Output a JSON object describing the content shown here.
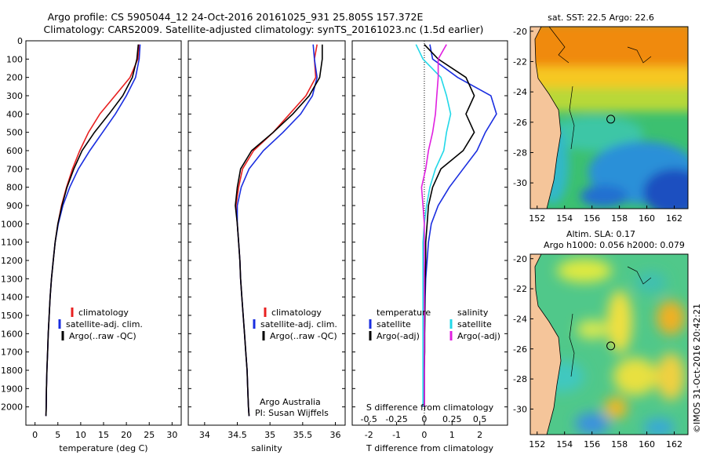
{
  "title_line1": "Argo profile: CS 5905044_12 24-Oct-2016 20161025_931 25.805S 157.372E",
  "title_line2": "Climatology: CARS2009. Satellite-adjusted climatology: synTS_20161023.nc (1.5d earlier)",
  "copyright": "©IMOS 31-Oct-2016 20:42:21",
  "colors": {
    "climatology": "#e82020",
    "satellite": "#1a2ee0",
    "argo": "#000000",
    "sat_salinity": "#22d8e8",
    "argo_salinity": "#e020e0"
  },
  "temp_panel": {
    "xlabel": "temperature (deg C)",
    "legend": [
      "climatology",
      "satellite-adj. clim.",
      "Argo(..raw -QC)"
    ]
  },
  "sal_panel": {
    "xlabel": "salinity",
    "legend": [
      "climatology",
      "satellite-adj. clim.",
      "Argo(..raw -QC)"
    ],
    "note1": "Argo Australia",
    "note2": "PI: Susan Wijffels"
  },
  "diff_panel": {
    "xlabel": "T difference from climatology",
    "top_label": "S difference from climatology",
    "legend_temp_title": "temperature",
    "legend_sal_title": "salinity",
    "legend_temp": [
      "satellite",
      "Argo(-adj)"
    ],
    "legend_sal": [
      "satellite",
      "Argo(-adj)"
    ]
  },
  "sst_map": {
    "title": "sat. SST: 22.5  Argo: 22.6"
  },
  "sla_map": {
    "title1": "Altim. SLA: 0.17",
    "title2": "Argo h1000: 0.056  h2000: 0.079"
  },
  "chart_data": [
    {
      "type": "line",
      "name": "temperature profile",
      "xlabel": "temperature (deg C)",
      "ylabel": "",
      "xlim": [
        -2,
        32
      ],
      "ylim": [
        2100,
        0
      ],
      "xticks": [
        0,
        5,
        10,
        15,
        20,
        25,
        30
      ],
      "yticks": [
        0,
        100,
        200,
        300,
        400,
        500,
        600,
        700,
        800,
        900,
        1000,
        1100,
        1200,
        1300,
        1400,
        1500,
        1600,
        1700,
        1800,
        1900,
        2000
      ],
      "series": [
        {
          "name": "climatology",
          "color": "#e82020",
          "x": [
            22.8,
            22.5,
            20.8,
            17.5,
            14.2,
            11.7,
            9.8,
            8.2,
            6.9,
            5.8,
            5.0,
            4.4,
            4.0,
            3.6,
            3.3,
            3.1,
            2.9,
            2.75,
            2.6,
            2.5,
            2.45,
            2.4
          ],
          "y": [
            20,
            100,
            200,
            300,
            400,
            500,
            600,
            700,
            800,
            900,
            1000,
            1100,
            1200,
            1300,
            1400,
            1500,
            1600,
            1700,
            1800,
            1900,
            2000,
            2050
          ]
        },
        {
          "name": "satellite-adj. clim.",
          "color": "#1a2ee0",
          "x": [
            23.0,
            22.8,
            22.0,
            20.0,
            17.6,
            14.8,
            12.0,
            9.5,
            7.6,
            6.1,
            5.1,
            4.4,
            4.0,
            3.6,
            3.3,
            3.1,
            2.9,
            2.75,
            2.6,
            2.5,
            2.45,
            2.4
          ],
          "y": [
            20,
            100,
            200,
            300,
            400,
            500,
            600,
            700,
            800,
            900,
            1000,
            1100,
            1200,
            1300,
            1400,
            1500,
            1600,
            1700,
            1800,
            1900,
            2000,
            2050
          ]
        },
        {
          "name": "Argo(..raw -QC)",
          "color": "#000000",
          "x": [
            22.6,
            22.3,
            21.3,
            19.2,
            16.2,
            13.0,
            10.3,
            8.5,
            7.0,
            5.9,
            5.0,
            4.4,
            4.0,
            3.6,
            3.3,
            3.1,
            2.9,
            2.75,
            2.6,
            2.5,
            2.45,
            2.4
          ],
          "y": [
            20,
            100,
            200,
            300,
            400,
            500,
            600,
            700,
            800,
            900,
            1000,
            1100,
            1200,
            1300,
            1400,
            1500,
            1600,
            1700,
            1800,
            1900,
            2000,
            2050
          ]
        }
      ]
    },
    {
      "type": "line",
      "name": "salinity profile",
      "xlabel": "salinity",
      "xlim": [
        33.75,
        36.15
      ],
      "ylim": [
        2100,
        0
      ],
      "xticks": [
        34,
        34.5,
        35,
        35.5,
        36
      ],
      "series": [
        {
          "name": "climatology",
          "color": "#e82020",
          "x": [
            35.72,
            35.68,
            35.7,
            35.55,
            35.3,
            35.05,
            34.75,
            34.58,
            34.52,
            34.48,
            34.5,
            34.52,
            34.54,
            34.55,
            34.57,
            34.59,
            34.61,
            34.63,
            34.65,
            34.66,
            34.67,
            34.68
          ],
          "y": [
            20,
            100,
            200,
            300,
            400,
            500,
            600,
            700,
            800,
            900,
            1000,
            1100,
            1200,
            1300,
            1400,
            1500,
            1600,
            1700,
            1800,
            1900,
            2000,
            2050
          ]
        },
        {
          "name": "satellite-adj. clim.",
          "color": "#1a2ee0",
          "x": [
            35.66,
            35.68,
            35.72,
            35.65,
            35.47,
            35.2,
            34.9,
            34.68,
            34.56,
            34.5,
            34.5,
            34.52,
            34.54,
            34.55,
            34.57,
            34.59,
            34.61,
            34.63,
            34.65,
            34.66,
            34.67,
            34.68
          ],
          "y": [
            20,
            100,
            200,
            300,
            400,
            500,
            600,
            700,
            800,
            900,
            1000,
            1100,
            1200,
            1300,
            1400,
            1500,
            1600,
            1700,
            1800,
            1900,
            2000,
            2050
          ]
        },
        {
          "name": "Argo(..raw -QC)",
          "color": "#000000",
          "x": [
            35.8,
            35.8,
            35.76,
            35.6,
            35.35,
            35.05,
            34.72,
            34.55,
            34.5,
            34.47,
            34.5,
            34.52,
            34.54,
            34.55,
            34.57,
            34.59,
            34.61,
            34.63,
            34.65,
            34.66,
            34.67,
            34.68
          ],
          "y": [
            20,
            100,
            200,
            300,
            400,
            500,
            600,
            700,
            800,
            900,
            1000,
            1100,
            1200,
            1300,
            1400,
            1500,
            1600,
            1700,
            1800,
            1900,
            2000,
            2050
          ]
        }
      ]
    },
    {
      "type": "line",
      "name": "difference from climatology",
      "xlabel": "T difference from climatology",
      "top_xlabel": "S difference from climatology",
      "xlim": [
        -2.6,
        3.0
      ],
      "ylim": [
        2100,
        0
      ],
      "xticks": [
        -2,
        -1,
        0,
        1,
        2
      ],
      "top_xticks": [
        {
          "pos": -2,
          "label": "-0.5"
        },
        {
          "pos": -1,
          "label": "-0.25"
        },
        {
          "pos": 0,
          "label": "0"
        },
        {
          "pos": 1,
          "label": "0.25"
        },
        {
          "pos": 2,
          "label": "0.5"
        }
      ],
      "series": [
        {
          "name": "temperature satellite",
          "color": "#1a2ee0",
          "x": [
            0.2,
            0.3,
            1.2,
            2.4,
            2.6,
            2.2,
            1.9,
            1.4,
            0.9,
            0.5,
            0.25,
            0.15,
            0.1,
            0.05,
            0.03,
            0.02,
            0.01,
            0.01,
            0.0,
            0.0,
            0.0
          ],
          "y": [
            20,
            100,
            200,
            300,
            400,
            500,
            600,
            700,
            800,
            900,
            1000,
            1100,
            1200,
            1300,
            1400,
            1500,
            1600,
            1700,
            1800,
            1900,
            2000
          ]
        },
        {
          "name": "temperature Argo(-adj)",
          "color": "#000000",
          "x": [
            0.0,
            0.5,
            1.5,
            1.8,
            1.5,
            1.8,
            1.4,
            0.6,
            0.3,
            0.15,
            0.1,
            0.05,
            0.05,
            0.03,
            0.02,
            0.02,
            0.01,
            0.01,
            0.0,
            0.0,
            0.0
          ],
          "y": [
            20,
            100,
            200,
            300,
            400,
            500,
            600,
            700,
            800,
            900,
            1000,
            1100,
            1200,
            1300,
            1400,
            1500,
            1600,
            1700,
            1800,
            1900,
            2000
          ]
        },
        {
          "name": "salinity satellite",
          "color": "#22d8e8",
          "x": [
            -0.3,
            -0.05,
            0.6,
            0.8,
            0.95,
            0.8,
            0.7,
            0.4,
            0.2,
            0.08,
            0.0,
            -0.05,
            -0.05,
            -0.05,
            -0.05,
            -0.05,
            -0.05,
            -0.05,
            -0.05,
            -0.05,
            -0.05
          ],
          "y": [
            20,
            100,
            200,
            300,
            400,
            500,
            600,
            700,
            800,
            900,
            1000,
            1100,
            1200,
            1300,
            1400,
            1500,
            1600,
            1700,
            1800,
            1900,
            2000
          ]
        },
        {
          "name": "salinity Argo(-adj)",
          "color": "#e020e0",
          "x": [
            0.8,
            0.5,
            0.5,
            0.45,
            0.4,
            0.3,
            0.15,
            0.05,
            -0.1,
            -0.05,
            0.0,
            0.0,
            0.0,
            0.0,
            0.0,
            0.0,
            0.0,
            0.0,
            0.0,
            0.0,
            0.0
          ],
          "y": [
            20,
            100,
            200,
            300,
            400,
            500,
            600,
            700,
            800,
            900,
            1000,
            1100,
            1200,
            1300,
            1400,
            1500,
            1600,
            1700,
            1800,
            1900,
            2000
          ]
        }
      ]
    },
    {
      "type": "heatmap",
      "name": "sat. SST map",
      "xlim": [
        151.5,
        163
      ],
      "ylim": [
        -31.7,
        -19.7
      ],
      "xticks": [
        152,
        154,
        156,
        158,
        160,
        162
      ],
      "yticks": [
        -20,
        -22,
        -24,
        -26,
        -28,
        -30
      ],
      "marker": {
        "lon": 157.37,
        "lat": -25.8
      }
    },
    {
      "type": "heatmap",
      "name": "altimetry SLA map",
      "xlim": [
        151.5,
        163
      ],
      "ylim": [
        -31.7,
        -19.7
      ],
      "xticks": [
        152,
        154,
        156,
        158,
        160,
        162
      ],
      "yticks": [
        -20,
        -22,
        -24,
        -26,
        -28,
        -30
      ],
      "marker": {
        "lon": 157.37,
        "lat": -25.8
      }
    }
  ]
}
